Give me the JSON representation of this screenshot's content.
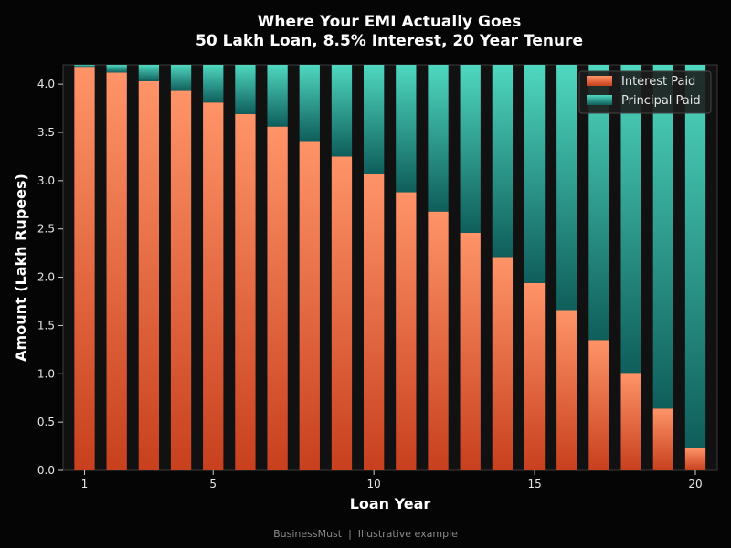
{
  "chart_data": {
    "type": "bar",
    "stacked": true,
    "title": "Where Your EMI Actually Goes",
    "subtitle": "50 Lakh Loan, 8.5% Interest, 20 Year Tenure",
    "xlabel": "Loan Year",
    "ylabel": "Amount (Lakh Rupees)",
    "x": [
      1,
      2,
      3,
      4,
      5,
      6,
      7,
      8,
      9,
      10,
      11,
      12,
      13,
      14,
      15,
      16,
      17,
      18,
      19,
      20
    ],
    "x_ticks": [
      1,
      5,
      10,
      15,
      20
    ],
    "y_ticks": [
      "0.0",
      "0.5",
      "1.0",
      "1.5",
      "2.0",
      "2.5",
      "3.0",
      "3.5",
      "4.0"
    ],
    "ylim": [
      0,
      4.2
    ],
    "series": [
      {
        "name": "Interest Paid",
        "color": "#f5845a",
        "values": [
          4.18,
          4.12,
          4.03,
          3.93,
          3.81,
          3.69,
          3.56,
          3.41,
          3.25,
          3.07,
          2.88,
          2.68,
          2.46,
          2.21,
          1.94,
          1.66,
          1.35,
          1.01,
          0.64,
          0.23
        ]
      },
      {
        "name": "Principal Paid",
        "color": "#3fc6b0",
        "values": [
          0.02,
          0.08,
          0.17,
          0.27,
          0.39,
          0.51,
          0.64,
          0.79,
          0.95,
          1.13,
          1.32,
          1.52,
          1.74,
          1.99,
          2.26,
          2.54,
          2.85,
          3.19,
          3.56,
          3.97
        ]
      }
    ],
    "legend_position": "top-right",
    "grid": false
  },
  "footer": "BusinessMust  |  Illustrative example"
}
